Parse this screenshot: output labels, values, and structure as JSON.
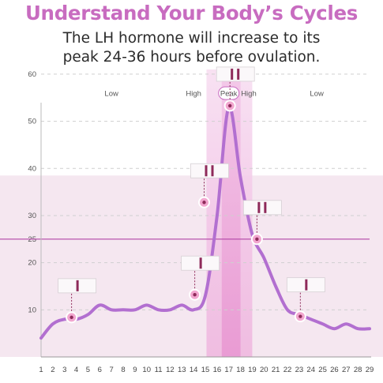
{
  "header": {
    "headline": "Understand Your Body’s Cycles",
    "subtitle_line1": "The LH hormone will increase to its",
    "subtitle_line2": "peak 24-36 hours before ovulation."
  },
  "colors": {
    "curve": "#b26fd0",
    "accent": "#c86cc0",
    "threshold": "#b245a6",
    "marker": "#f2a6cf",
    "marker_ring": "#ffffff",
    "test_mark": "#8e2a5a",
    "lower_band": "#f5e7f0",
    "high_band": "#f2c8e8",
    "peak_band": "#eba2d9"
  },
  "chart_data": {
    "type": "line",
    "x": [
      1,
      2,
      3,
      4,
      5,
      6,
      7,
      8,
      9,
      10,
      11,
      12,
      13,
      14,
      15,
      16,
      17,
      18,
      19,
      20,
      21,
      22,
      23,
      24,
      25,
      26,
      27,
      28,
      29
    ],
    "series": [
      {
        "values": [
          4,
          7,
          8,
          8,
          9,
          11,
          10,
          10,
          10,
          11,
          10,
          10,
          11,
          10,
          13,
          30,
          53,
          38,
          26,
          21,
          15,
          10,
          9,
          8,
          7,
          6,
          7,
          6,
          6
        ]
      }
    ],
    "xlim": [
      1,
      29
    ],
    "ylim": [
      0,
      62
    ],
    "y_ticks": [
      10,
      20,
      25,
      30,
      40,
      50,
      60
    ],
    "threshold": 25,
    "phase_labels": [
      {
        "text": "Low",
        "x": 7
      },
      {
        "text": "High",
        "x": 14
      },
      {
        "text": "Peak",
        "x": 17
      },
      {
        "text": "High",
        "x": 18.7
      },
      {
        "text": "Low",
        "x": 24.5
      }
    ],
    "bands": [
      {
        "name": "high",
        "x_from": 15.1,
        "x_to": 19
      },
      {
        "name": "peak",
        "x_from": 16.4,
        "x_to": 18
      }
    ],
    "lower_band_y_max": 38.5,
    "test_markers": [
      {
        "x": 3.6,
        "y": 8.4,
        "lines": 1
      },
      {
        "x": 14.1,
        "y": 13.2,
        "lines": 1
      },
      {
        "x": 14.9,
        "y": 32.8,
        "lines": 2
      },
      {
        "x": 17.1,
        "y": 53.3,
        "lines": 2
      },
      {
        "x": 19.4,
        "y": 25.0,
        "lines": 2
      },
      {
        "x": 23.1,
        "y": 8.6,
        "lines": 1
      }
    ],
    "grid": "dashed horizontal"
  }
}
